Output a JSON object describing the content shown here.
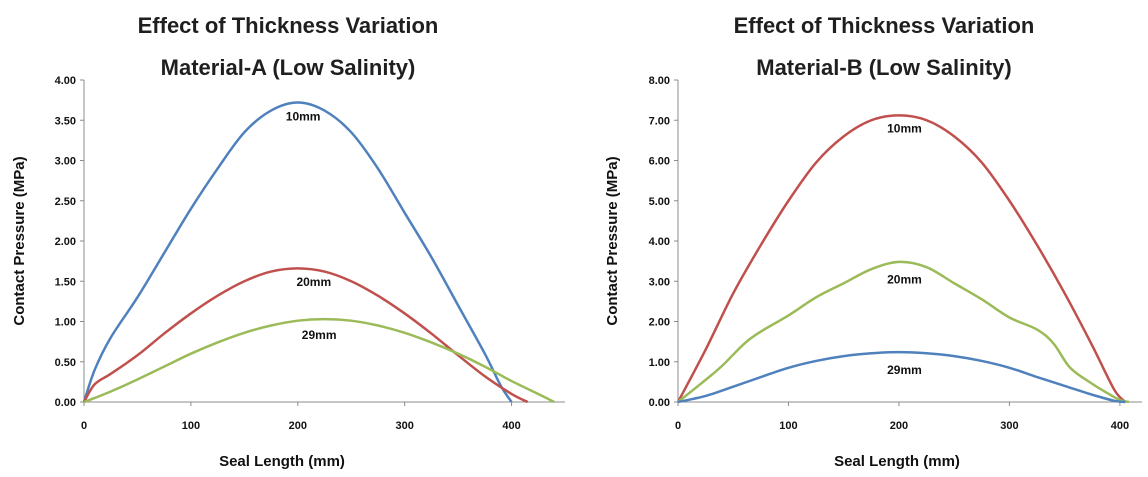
{
  "chart_data": [
    {
      "type": "line",
      "title": "Effect of Thickness Variation",
      "subtitle": "Material-A (Low Salinity)",
      "xlabel": "Seal Length (mm)",
      "ylabel": "Contact Pressure (MPa)",
      "xlim": [
        0,
        450
      ],
      "ylim": [
        0,
        4
      ],
      "xticks": [
        "0",
        "100",
        "200",
        "300",
        "400"
      ],
      "yticks": [
        "0.00",
        "0.50",
        "1.00",
        "1.50",
        "2.00",
        "2.50",
        "3.00",
        "3.50",
        "4.00"
      ],
      "grid": false,
      "series": [
        {
          "name": "10mm",
          "color": "#4f81bd",
          "points": [
            [
              0,
              0
            ],
            [
              10,
              0.4
            ],
            [
              25,
              0.8
            ],
            [
              50,
              1.3
            ],
            [
              75,
              1.85
            ],
            [
              100,
              2.4
            ],
            [
              125,
              2.9
            ],
            [
              150,
              3.35
            ],
            [
              175,
              3.62
            ],
            [
              200,
              3.72
            ],
            [
              225,
              3.62
            ],
            [
              250,
              3.35
            ],
            [
              275,
              2.9
            ],
            [
              300,
              2.35
            ],
            [
              325,
              1.8
            ],
            [
              350,
              1.2
            ],
            [
              375,
              0.6
            ],
            [
              390,
              0.2
            ],
            [
              400,
              0
            ]
          ]
        },
        {
          "name": "20mm",
          "color": "#c0504d",
          "points": [
            [
              0,
              0
            ],
            [
              10,
              0.22
            ],
            [
              25,
              0.35
            ],
            [
              50,
              0.58
            ],
            [
              75,
              0.85
            ],
            [
              100,
              1.1
            ],
            [
              125,
              1.32
            ],
            [
              150,
              1.5
            ],
            [
              175,
              1.62
            ],
            [
              200,
              1.66
            ],
            [
              225,
              1.62
            ],
            [
              250,
              1.5
            ],
            [
              275,
              1.32
            ],
            [
              300,
              1.1
            ],
            [
              325,
              0.85
            ],
            [
              350,
              0.58
            ],
            [
              375,
              0.32
            ],
            [
              400,
              0.1
            ],
            [
              415,
              0
            ]
          ]
        },
        {
          "name": "29mm",
          "color": "#9bbb59",
          "points": [
            [
              0,
              0
            ],
            [
              10,
              0.05
            ],
            [
              25,
              0.13
            ],
            [
              50,
              0.28
            ],
            [
              75,
              0.44
            ],
            [
              100,
              0.6
            ],
            [
              125,
              0.74
            ],
            [
              150,
              0.86
            ],
            [
              175,
              0.95
            ],
            [
              200,
              1.01
            ],
            [
              225,
              1.03
            ],
            [
              250,
              1.01
            ],
            [
              275,
              0.95
            ],
            [
              300,
              0.86
            ],
            [
              325,
              0.74
            ],
            [
              350,
              0.6
            ],
            [
              375,
              0.44
            ],
            [
              400,
              0.26
            ],
            [
              425,
              0.1
            ],
            [
              440,
              0
            ]
          ]
        }
      ],
      "annotations": [
        {
          "text": "10mm",
          "x": 205,
          "y": 3.5
        },
        {
          "text": "20mm",
          "x": 215,
          "y": 1.44
        },
        {
          "text": "29mm",
          "x": 220,
          "y": 0.78
        }
      ]
    },
    {
      "type": "line",
      "title": "Effect of Thickness Variation",
      "subtitle": "Material-B (Low Salinity)",
      "xlabel": "Seal Length (mm)",
      "ylabel": "Contact Pressure (MPa)",
      "xlim": [
        0,
        420
      ],
      "ylim": [
        0,
        8
      ],
      "xticks": [
        "0",
        "100",
        "200",
        "300",
        "400"
      ],
      "yticks": [
        "0.00",
        "1.00",
        "2.00",
        "3.00",
        "4.00",
        "5.00",
        "6.00",
        "7.00",
        "8.00"
      ],
      "grid": false,
      "series": [
        {
          "name": "10mm",
          "color": "#c0504d",
          "points": [
            [
              0,
              0
            ],
            [
              25,
              1.3
            ],
            [
              50,
              2.7
            ],
            [
              75,
              3.9
            ],
            [
              100,
              5.0
            ],
            [
              125,
              5.95
            ],
            [
              150,
              6.6
            ],
            [
              175,
              7.0
            ],
            [
              200,
              7.12
            ],
            [
              225,
              7.0
            ],
            [
              250,
              6.6
            ],
            [
              275,
              5.95
            ],
            [
              300,
              5.0
            ],
            [
              325,
              3.9
            ],
            [
              350,
              2.7
            ],
            [
              375,
              1.4
            ],
            [
              395,
              0.3
            ],
            [
              405,
              0
            ]
          ]
        },
        {
          "name": "20mm",
          "color": "#9bbb59",
          "points": [
            [
              0,
              0
            ],
            [
              25,
              0.55
            ],
            [
              40,
              0.9
            ],
            [
              60,
              1.45
            ],
            [
              75,
              1.75
            ],
            [
              100,
              2.15
            ],
            [
              125,
              2.6
            ],
            [
              150,
              2.95
            ],
            [
              175,
              3.3
            ],
            [
              200,
              3.48
            ],
            [
              225,
              3.35
            ],
            [
              250,
              2.95
            ],
            [
              275,
              2.55
            ],
            [
              300,
              2.1
            ],
            [
              325,
              1.8
            ],
            [
              340,
              1.45
            ],
            [
              355,
              0.85
            ],
            [
              375,
              0.45
            ],
            [
              390,
              0.2
            ],
            [
              400,
              0.05
            ],
            [
              408,
              0
            ]
          ]
        },
        {
          "name": "29mm",
          "color": "#4f81bd",
          "points": [
            [
              0,
              0
            ],
            [
              25,
              0.15
            ],
            [
              50,
              0.38
            ],
            [
              75,
              0.62
            ],
            [
              100,
              0.85
            ],
            [
              125,
              1.02
            ],
            [
              150,
              1.14
            ],
            [
              175,
              1.21
            ],
            [
              200,
              1.24
            ],
            [
              225,
              1.21
            ],
            [
              250,
              1.14
            ],
            [
              275,
              1.02
            ],
            [
              300,
              0.85
            ],
            [
              325,
              0.62
            ],
            [
              350,
              0.4
            ],
            [
              375,
              0.18
            ],
            [
              395,
              0.03
            ],
            [
              405,
              0
            ]
          ]
        }
      ],
      "annotations": [
        {
          "text": "10mm",
          "x": 205,
          "y": 6.7
        },
        {
          "text": "20mm",
          "x": 205,
          "y": 2.95
        },
        {
          "text": "29mm",
          "x": 205,
          "y": 0.7
        }
      ]
    }
  ]
}
